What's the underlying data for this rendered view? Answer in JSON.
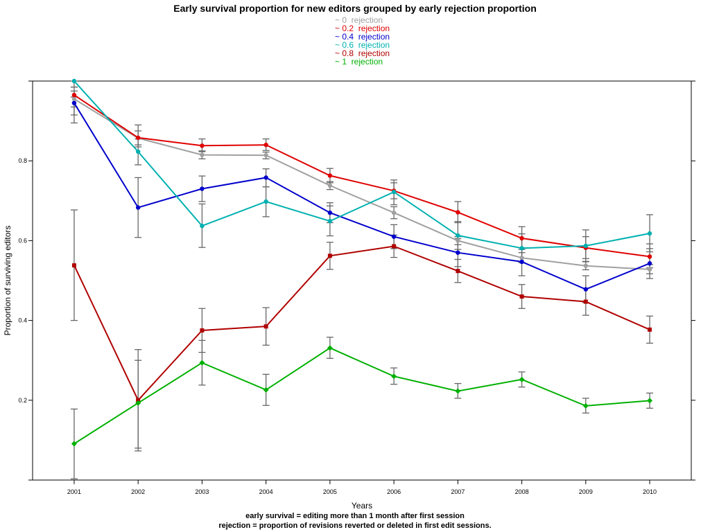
{
  "chart_data": {
    "type": "line",
    "title": "Early survival proportion for new editors grouped by early rejection proportion",
    "xlabel": "Years",
    "ylabel": "Proportion of surviving editors",
    "footnotes": [
      "early survival = editing more than 1 month after first session",
      "rejection = proportion of revisions reverted or deleted in first edit sessions."
    ],
    "x": [
      2001,
      2002,
      2003,
      2004,
      2005,
      2006,
      2007,
      2008,
      2009,
      2010
    ],
    "x_tick_labels": [
      "2001",
      "2002",
      "2003",
      "2004",
      "2005",
      "2006",
      "2007",
      "2008",
      "2009",
      "2010"
    ],
    "y_ticks": [
      0.2,
      0.4,
      0.6,
      0.8
    ],
    "y_tick_labels": [
      "0.2",
      "0.4",
      "0.6",
      "0.8"
    ],
    "xlim": [
      2000.35,
      2010.65
    ],
    "ylim": [
      0.0,
      1.0
    ],
    "grid": false,
    "legend_position": "top-center",
    "series": [
      {
        "name": "~ 0  rejection",
        "color": "#a0a0a0",
        "marker": "circle",
        "values": [
          0.955,
          0.857,
          0.815,
          0.814,
          0.738,
          0.67,
          0.6,
          0.557,
          0.537,
          0.528
        ],
        "err": [
          [
            0.915,
            0.975
          ],
          [
            0.84,
            0.875
          ],
          [
            0.805,
            0.825
          ],
          [
            0.805,
            0.822
          ],
          [
            0.728,
            0.748
          ],
          [
            0.655,
            0.685
          ],
          [
            0.59,
            0.61
          ],
          [
            0.545,
            0.57
          ],
          [
            0.527,
            0.548
          ],
          [
            0.517,
            0.54
          ]
        ]
      },
      {
        "name": "~ 0.2  rejection",
        "color": "#e00000",
        "marker": "circle",
        "values": [
          0.965,
          0.858,
          0.838,
          0.84,
          0.763,
          0.725,
          0.671,
          0.606,
          0.582,
          0.56
        ],
        "err": [
          [
            0.935,
            0.985
          ],
          [
            0.835,
            0.89
          ],
          [
            0.823,
            0.855
          ],
          [
            0.826,
            0.855
          ],
          [
            0.745,
            0.781
          ],
          [
            0.705,
            0.745
          ],
          [
            0.645,
            0.698
          ],
          [
            0.578,
            0.635
          ],
          [
            0.555,
            0.61
          ],
          [
            0.532,
            0.592
          ]
        ]
      },
      {
        "name": "~ 0.4  rejection",
        "color": "#0000cc",
        "marker": "circle",
        "values": [
          0.945,
          0.683,
          0.73,
          0.758,
          0.67,
          0.61,
          0.57,
          0.547,
          0.478,
          0.543
        ],
        "err": [
          [
            0.895,
            0.96
          ],
          [
            0.608,
            0.758
          ],
          [
            0.698,
            0.762
          ],
          [
            0.735,
            0.78
          ],
          [
            0.645,
            0.695
          ],
          [
            0.58,
            0.64
          ],
          [
            0.535,
            0.605
          ],
          [
            0.512,
            0.582
          ],
          [
            0.445,
            0.512
          ],
          [
            0.505,
            0.58
          ]
        ]
      },
      {
        "name": "~ 0.6  rejection",
        "color": "#00b0b0",
        "marker": "circle",
        "values": [
          1.0,
          0.823,
          0.637,
          0.698,
          0.649,
          0.722,
          0.613,
          0.581,
          0.587,
          0.618
        ],
        "err": [
          [
            0.985,
            1.0
          ],
          [
            0.79,
            0.855
          ],
          [
            0.583,
            0.692
          ],
          [
            0.66,
            0.735
          ],
          [
            0.612,
            0.687
          ],
          [
            0.69,
            0.752
          ],
          [
            0.578,
            0.648
          ],
          [
            0.545,
            0.617
          ],
          [
            0.547,
            0.627
          ],
          [
            0.572,
            0.665
          ]
        ]
      },
      {
        "name": "~ 0.8  rejection",
        "color": "#b00000",
        "marker": "square",
        "values": [
          0.538,
          0.2,
          0.375,
          0.385,
          0.562,
          0.586,
          0.524,
          0.46,
          0.447,
          0.377
        ],
        "err": [
          [
            0.4,
            0.677
          ],
          [
            0.073,
            0.327
          ],
          [
            0.32,
            0.43
          ],
          [
            0.338,
            0.432
          ],
          [
            0.528,
            0.596
          ],
          [
            0.558,
            0.614
          ],
          [
            0.495,
            0.553
          ],
          [
            0.43,
            0.49
          ],
          [
            0.413,
            0.481
          ],
          [
            0.343,
            0.411
          ]
        ]
      },
      {
        "name": "~ 1  rejection",
        "color": "#00b000",
        "marker": "diamond",
        "values": [
          0.091,
          0.193,
          0.294,
          0.226,
          0.331,
          0.26,
          0.223,
          0.252,
          0.186,
          0.199
        ],
        "err": [
          [
            0.003,
            0.178
          ],
          [
            0.08,
            0.3
          ],
          [
            0.238,
            0.35
          ],
          [
            0.187,
            0.265
          ],
          [
            0.305,
            0.358
          ],
          [
            0.24,
            0.281
          ],
          [
            0.205,
            0.242
          ],
          [
            0.233,
            0.271
          ],
          [
            0.168,
            0.205
          ],
          [
            0.18,
            0.218
          ]
        ]
      }
    ]
  }
}
